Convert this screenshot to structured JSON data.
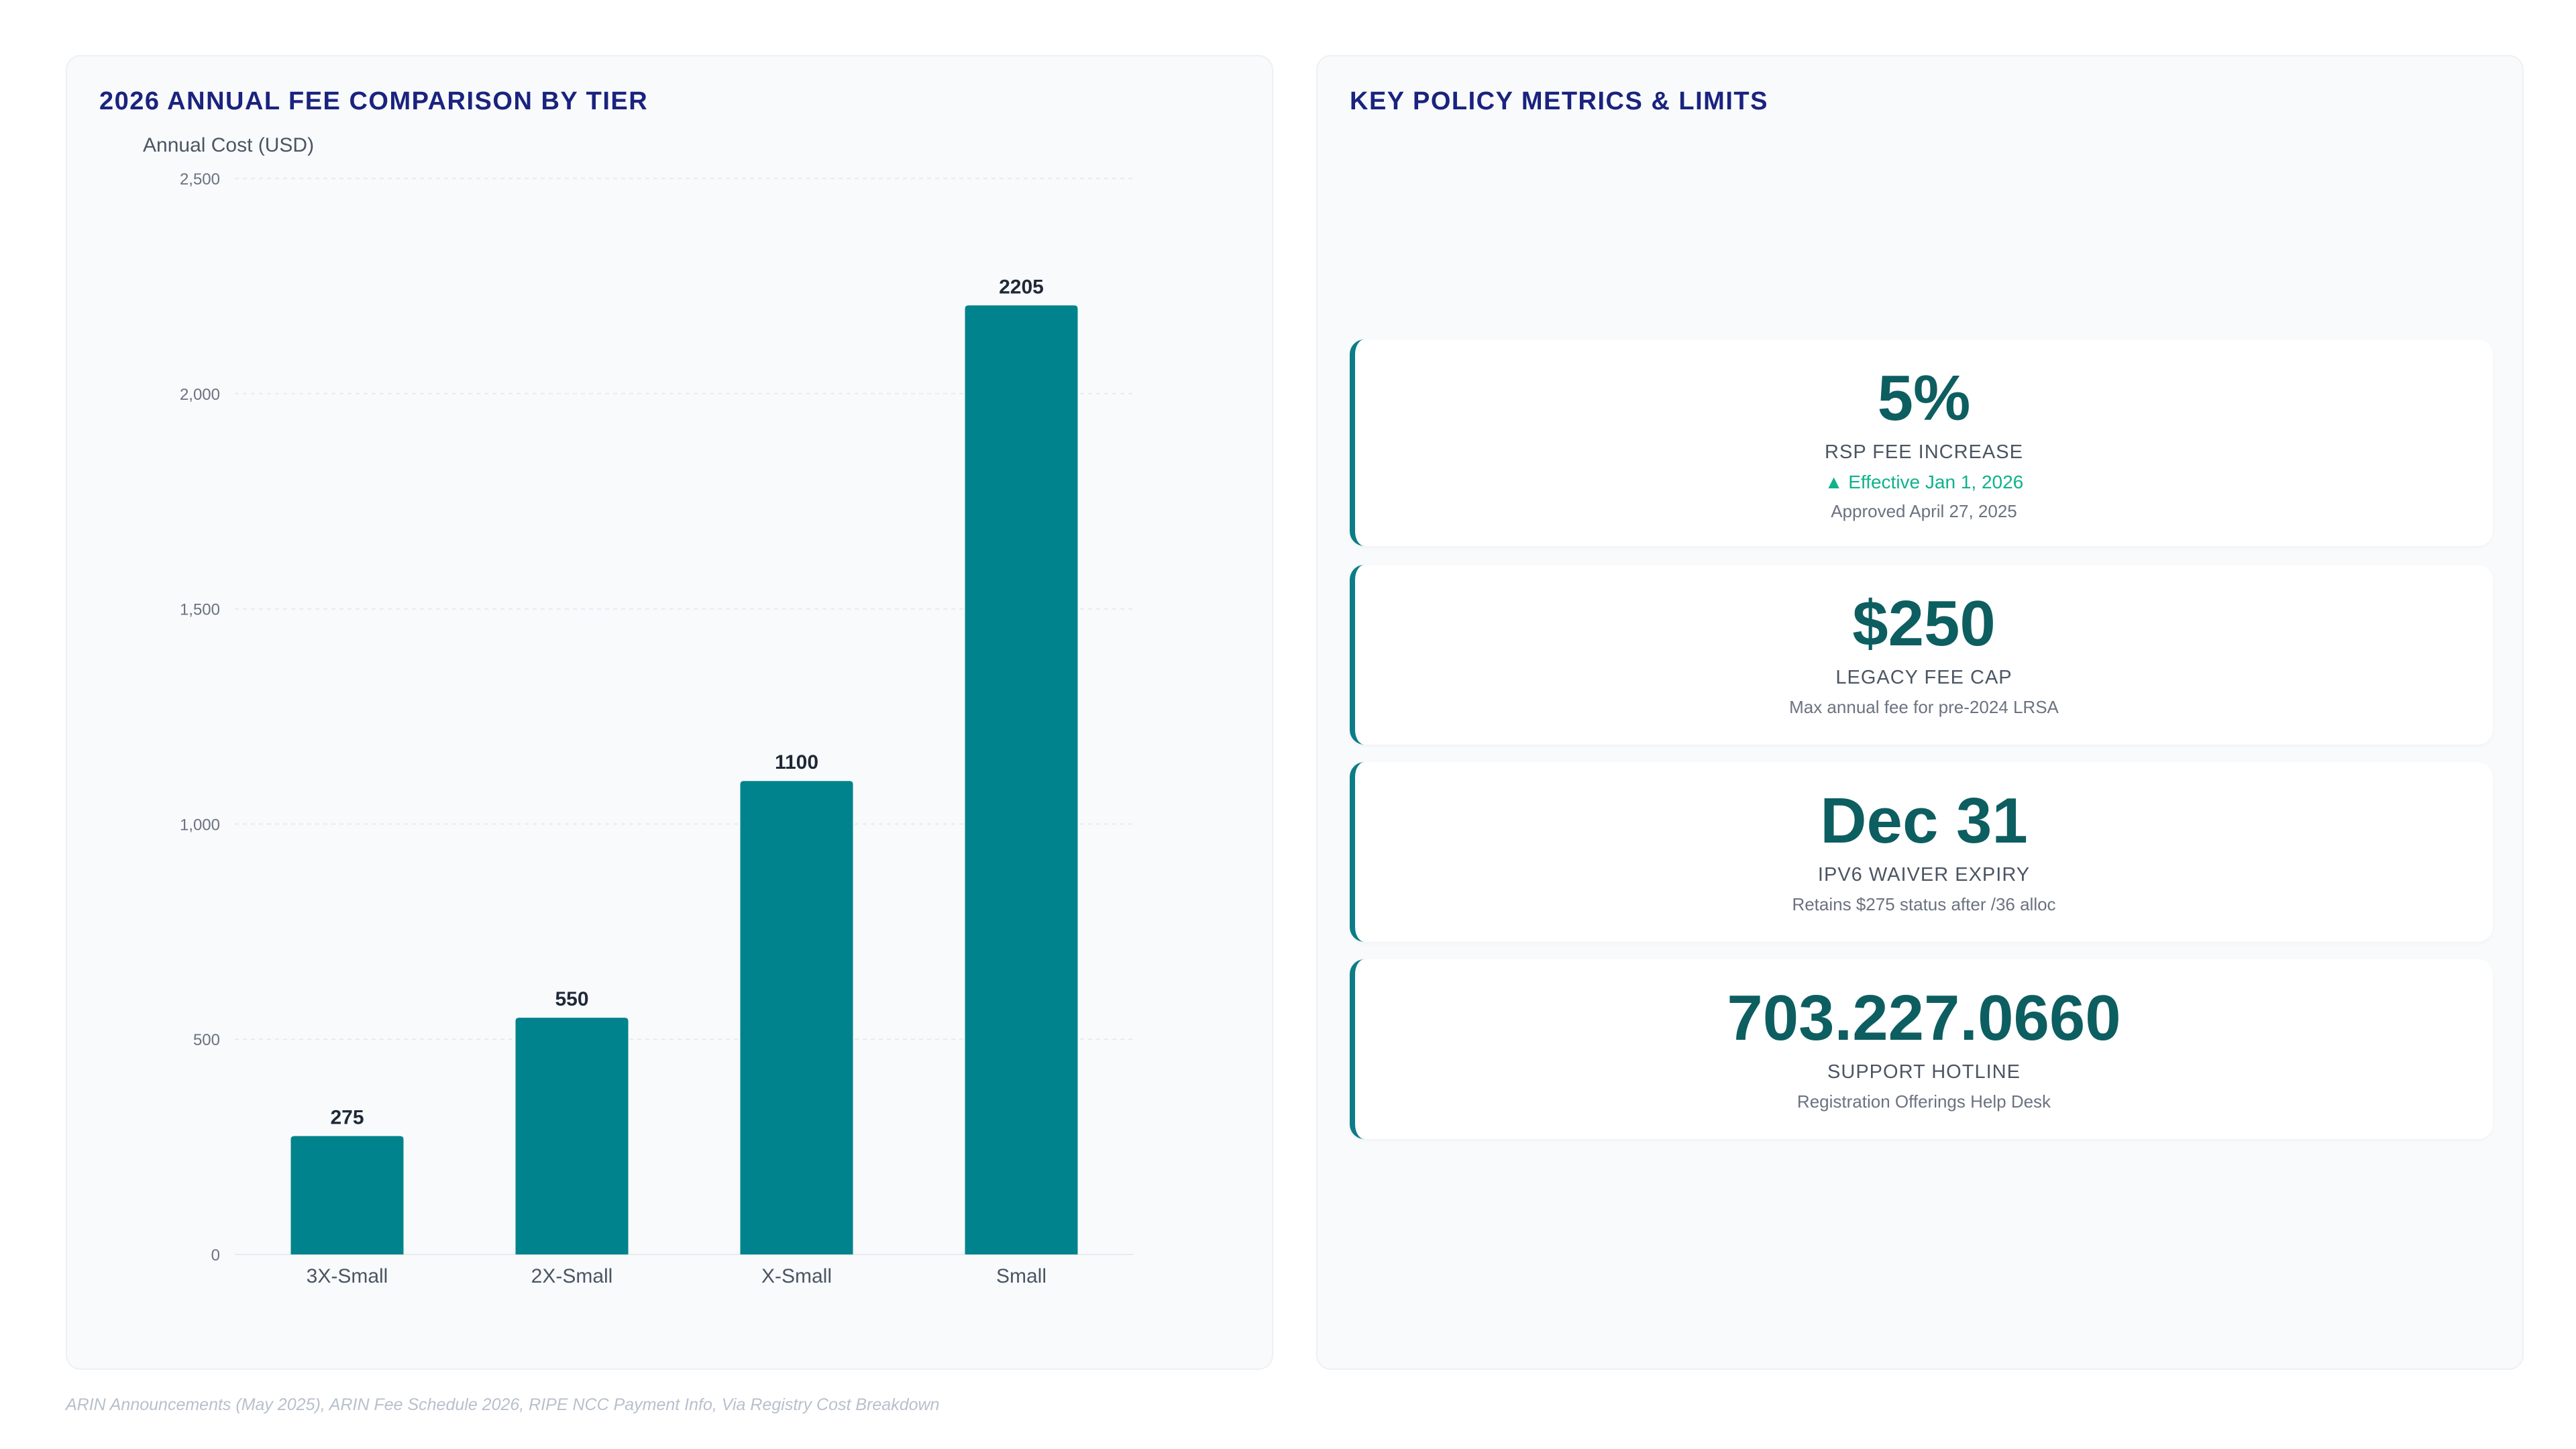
{
  "left_panel": {
    "title": "2026 ANNUAL FEE COMPARISON BY TIER"
  },
  "right_panel": {
    "title": "KEY POLICY METRICS & LIMITS",
    "cards": [
      {
        "value": "5%",
        "label": "RSP FEE INCREASE",
        "note": "▲ Effective Jan 1, 2026",
        "sub": "Approved April 27, 2025"
      },
      {
        "value": "$250",
        "label": "LEGACY FEE CAP",
        "note": "",
        "sub": "Max annual fee for pre-2024 LRSA"
      },
      {
        "value": "Dec 31",
        "label": "IPV6 WAIVER EXPIRY",
        "note": "",
        "sub": "Retains $275 status after /36 alloc"
      },
      {
        "value": "703.227.0660",
        "label": "SUPPORT HOTLINE",
        "note": "",
        "sub": "Registration Offerings Help Desk"
      }
    ]
  },
  "source": "ARIN Announcements (May 2025), ARIN Fee Schedule 2026, RIPE NCC Payment Info, Via Registry Cost Breakdown",
  "chart_data": {
    "type": "bar",
    "title": "2026 ANNUAL FEE COMPARISON BY TIER",
    "ylabel": "Annual Cost (USD)",
    "xlabel": "",
    "categories": [
      "3X-Small",
      "2X-Small",
      "X-Small",
      "Small"
    ],
    "values": [
      275,
      550,
      1100,
      2205
    ],
    "value_labels": [
      "275",
      "550",
      "1100",
      "2205"
    ],
    "ylim": [
      0,
      2500
    ],
    "yticks": [
      0,
      500,
      1000,
      1500,
      2000,
      2500
    ],
    "ytick_labels": [
      "0",
      "500",
      "1,000",
      "1,500",
      "2,000",
      "2,500"
    ],
    "grid": true,
    "bar_color": "#00838c"
  },
  "colors": {
    "accent": "#0b7d86",
    "title": "#1a237e",
    "value": "#0d5e60",
    "positive": "#0fb28b"
  }
}
